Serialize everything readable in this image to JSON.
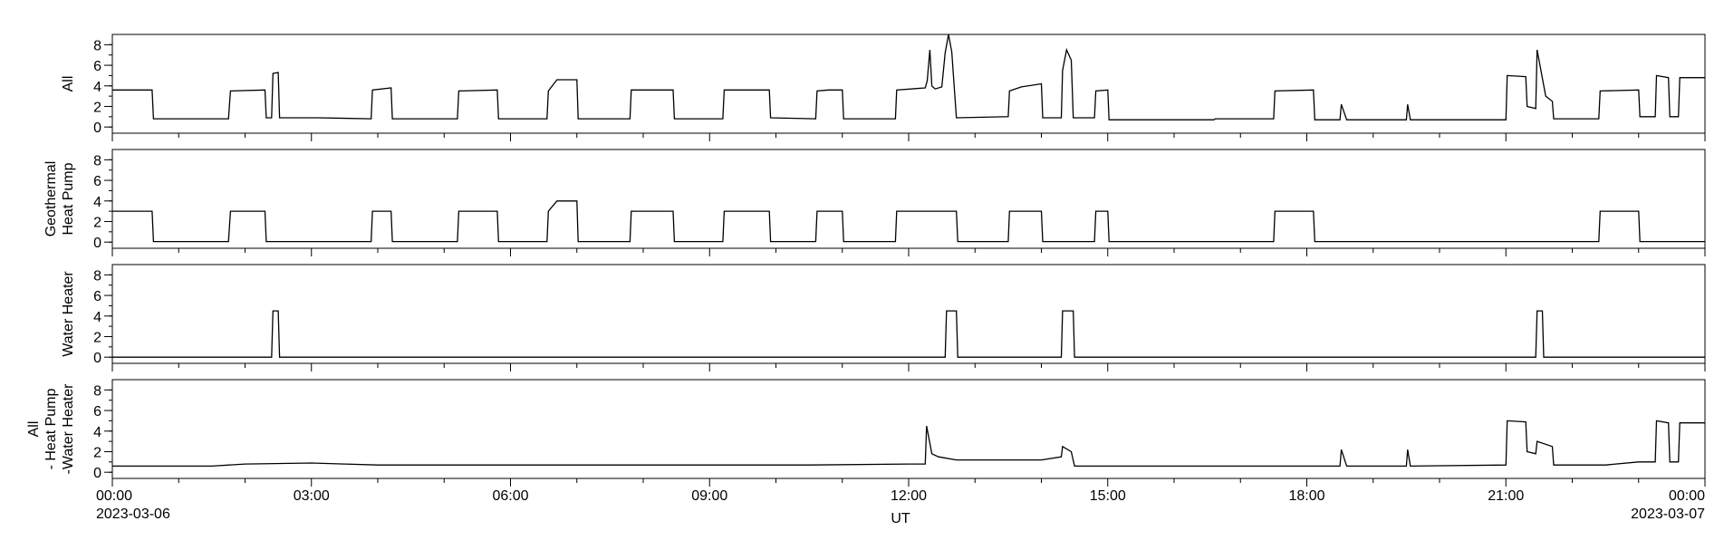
{
  "chart_data": {
    "type": "line",
    "xlabel": "UT",
    "x_tick_labels": [
      "00:00",
      "03:00",
      "06:00",
      "09:00",
      "12:00",
      "15:00",
      "18:00",
      "21:00",
      "00:00"
    ],
    "x_tick_hours": [
      0,
      3,
      6,
      9,
      12,
      15,
      18,
      21,
      24
    ],
    "x_date_labels": {
      "start": "2023-03-06",
      "end": "2023-03-07"
    },
    "x_range_hours": [
      0,
      24
    ],
    "y_tick_labels": [
      "0",
      "2",
      "4",
      "6",
      "8"
    ],
    "ylim": [
      -0.6,
      9
    ],
    "line_color": "#000000",
    "panels": [
      {
        "label_lines": [
          "All"
        ],
        "series": [
          [
            0,
            3.6
          ],
          [
            0.6,
            3.6
          ],
          [
            0.62,
            0.8
          ],
          [
            1.75,
            0.8
          ],
          [
            1.78,
            3.5
          ],
          [
            2.3,
            3.6
          ],
          [
            2.32,
            0.9
          ],
          [
            2.4,
            0.9
          ],
          [
            2.42,
            5.2
          ],
          [
            2.5,
            5.3
          ],
          [
            2.52,
            0.9
          ],
          [
            3.1,
            0.9
          ],
          [
            3.9,
            0.8
          ],
          [
            3.92,
            3.6
          ],
          [
            4.2,
            3.8
          ],
          [
            4.22,
            0.8
          ],
          [
            5.2,
            0.8
          ],
          [
            5.22,
            3.5
          ],
          [
            5.8,
            3.6
          ],
          [
            5.82,
            0.8
          ],
          [
            6.55,
            0.8
          ],
          [
            6.57,
            3.5
          ],
          [
            6.7,
            4.6
          ],
          [
            7.0,
            4.6
          ],
          [
            7.02,
            0.8
          ],
          [
            7.8,
            0.8
          ],
          [
            7.82,
            3.6
          ],
          [
            8.45,
            3.6
          ],
          [
            8.47,
            0.8
          ],
          [
            9.2,
            0.8
          ],
          [
            9.22,
            3.6
          ],
          [
            9.9,
            3.6
          ],
          [
            9.92,
            0.9
          ],
          [
            10.6,
            0.8
          ],
          [
            10.62,
            3.5
          ],
          [
            10.8,
            3.6
          ],
          [
            11.0,
            3.6
          ],
          [
            11.02,
            0.8
          ],
          [
            11.8,
            0.8
          ],
          [
            11.82,
            3.6
          ],
          [
            12.25,
            3.8
          ],
          [
            12.28,
            4.5
          ],
          [
            12.32,
            7.5
          ],
          [
            12.35,
            4.0
          ],
          [
            12.4,
            3.7
          ],
          [
            12.5,
            3.9
          ],
          [
            12.55,
            7.2
          ],
          [
            12.6,
            9.0
          ],
          [
            12.65,
            7.3
          ],
          [
            12.72,
            0.9
          ],
          [
            13.5,
            1.0
          ],
          [
            13.52,
            3.5
          ],
          [
            13.7,
            3.9
          ],
          [
            14.0,
            4.2
          ],
          [
            14.02,
            0.9
          ],
          [
            14.3,
            0.9
          ],
          [
            14.32,
            5.5
          ],
          [
            14.38,
            7.5
          ],
          [
            14.45,
            6.5
          ],
          [
            14.48,
            0.9
          ],
          [
            14.8,
            0.9
          ],
          [
            14.82,
            3.5
          ],
          [
            15.0,
            3.6
          ],
          [
            15.02,
            0.7
          ],
          [
            16.6,
            0.7
          ],
          [
            16.62,
            0.8
          ],
          [
            17.5,
            0.8
          ],
          [
            17.52,
            3.5
          ],
          [
            18.1,
            3.6
          ],
          [
            18.12,
            0.7
          ],
          [
            18.5,
            0.7
          ],
          [
            18.52,
            2.2
          ],
          [
            18.6,
            0.7
          ],
          [
            19.5,
            0.7
          ],
          [
            19.52,
            2.2
          ],
          [
            19.56,
            0.7
          ],
          [
            21.0,
            0.7
          ],
          [
            21.02,
            5.0
          ],
          [
            21.3,
            4.9
          ],
          [
            21.32,
            2.0
          ],
          [
            21.45,
            1.8
          ],
          [
            21.47,
            7.5
          ],
          [
            21.6,
            3.0
          ],
          [
            21.7,
            2.5
          ],
          [
            21.72,
            0.8
          ],
          [
            22.4,
            0.8
          ],
          [
            22.42,
            3.5
          ],
          [
            23.0,
            3.6
          ],
          [
            23.02,
            1.0
          ],
          [
            23.25,
            1.0
          ],
          [
            23.27,
            5.0
          ],
          [
            23.45,
            4.8
          ],
          [
            23.47,
            1.0
          ],
          [
            23.6,
            1.0
          ],
          [
            23.62,
            4.8
          ],
          [
            24.0,
            4.8
          ]
        ]
      },
      {
        "label_lines": [
          "Geothermal",
          "Heat Pump"
        ],
        "series": [
          [
            0,
            3.0
          ],
          [
            0.6,
            3.0
          ],
          [
            0.62,
            0.05
          ],
          [
            1.75,
            0.05
          ],
          [
            1.78,
            3.0
          ],
          [
            2.3,
            3.0
          ],
          [
            2.32,
            0.05
          ],
          [
            3.9,
            0.05
          ],
          [
            3.92,
            3.0
          ],
          [
            4.2,
            3.0
          ],
          [
            4.22,
            0.05
          ],
          [
            5.2,
            0.05
          ],
          [
            5.22,
            3.0
          ],
          [
            5.8,
            3.0
          ],
          [
            5.82,
            0.05
          ],
          [
            6.55,
            0.05
          ],
          [
            6.57,
            3.0
          ],
          [
            6.7,
            4.0
          ],
          [
            7.0,
            4.0
          ],
          [
            7.02,
            0.05
          ],
          [
            7.8,
            0.05
          ],
          [
            7.82,
            3.0
          ],
          [
            8.45,
            3.0
          ],
          [
            8.47,
            0.05
          ],
          [
            9.2,
            0.05
          ],
          [
            9.22,
            3.0
          ],
          [
            9.9,
            3.0
          ],
          [
            9.92,
            0.05
          ],
          [
            10.6,
            0.05
          ],
          [
            10.62,
            3.0
          ],
          [
            10.8,
            3.0
          ],
          [
            11.0,
            3.0
          ],
          [
            11.02,
            0.05
          ],
          [
            11.8,
            0.05
          ],
          [
            11.82,
            3.0
          ],
          [
            12.72,
            3.0
          ],
          [
            12.74,
            0.05
          ],
          [
            13.5,
            0.05
          ],
          [
            13.52,
            3.0
          ],
          [
            14.0,
            3.0
          ],
          [
            14.02,
            0.05
          ],
          [
            14.8,
            0.05
          ],
          [
            14.82,
            3.0
          ],
          [
            15.0,
            3.0
          ],
          [
            15.02,
            0.05
          ],
          [
            17.5,
            0.05
          ],
          [
            17.52,
            3.0
          ],
          [
            18.1,
            3.0
          ],
          [
            18.12,
            0.05
          ],
          [
            22.4,
            0.05
          ],
          [
            22.42,
            3.0
          ],
          [
            23.0,
            3.0
          ],
          [
            23.02,
            0.05
          ],
          [
            24.0,
            0.05
          ]
        ]
      },
      {
        "label_lines": [
          "Water Heater"
        ],
        "series": [
          [
            0,
            0
          ],
          [
            2.4,
            0
          ],
          [
            2.42,
            4.5
          ],
          [
            2.5,
            4.5
          ],
          [
            2.52,
            0
          ],
          [
            12.55,
            0
          ],
          [
            12.57,
            4.5
          ],
          [
            12.72,
            4.5
          ],
          [
            12.74,
            0
          ],
          [
            14.3,
            0
          ],
          [
            14.32,
            4.5
          ],
          [
            14.48,
            4.5
          ],
          [
            14.5,
            0
          ],
          [
            21.45,
            0
          ],
          [
            21.47,
            4.5
          ],
          [
            21.55,
            4.5
          ],
          [
            21.57,
            0
          ],
          [
            24.0,
            0
          ]
        ]
      },
      {
        "label_lines": [
          "All",
          "- Heat Pump",
          "-Water Heater"
        ],
        "series": [
          [
            0,
            0.6
          ],
          [
            1.5,
            0.6
          ],
          [
            2.0,
            0.8
          ],
          [
            3.0,
            0.9
          ],
          [
            3.5,
            0.8
          ],
          [
            4.0,
            0.7
          ],
          [
            6.0,
            0.7
          ],
          [
            9.0,
            0.7
          ],
          [
            10.5,
            0.7
          ],
          [
            12.0,
            0.8
          ],
          [
            12.25,
            0.8
          ],
          [
            12.27,
            4.5
          ],
          [
            12.35,
            1.8
          ],
          [
            12.45,
            1.5
          ],
          [
            12.72,
            1.2
          ],
          [
            13.5,
            1.2
          ],
          [
            14.0,
            1.2
          ],
          [
            14.3,
            1.5
          ],
          [
            14.32,
            2.5
          ],
          [
            14.45,
            2.0
          ],
          [
            14.5,
            0.6
          ],
          [
            16.0,
            0.6
          ],
          [
            18.0,
            0.6
          ],
          [
            18.5,
            0.6
          ],
          [
            18.52,
            2.2
          ],
          [
            18.6,
            0.6
          ],
          [
            19.5,
            0.6
          ],
          [
            19.52,
            2.2
          ],
          [
            19.56,
            0.6
          ],
          [
            21.0,
            0.7
          ],
          [
            21.02,
            5.0
          ],
          [
            21.3,
            4.9
          ],
          [
            21.32,
            2.0
          ],
          [
            21.45,
            1.8
          ],
          [
            21.47,
            3.0
          ],
          [
            21.7,
            2.5
          ],
          [
            21.72,
            0.7
          ],
          [
            22.5,
            0.7
          ],
          [
            23.0,
            1.0
          ],
          [
            23.25,
            1.0
          ],
          [
            23.27,
            5.0
          ],
          [
            23.45,
            4.8
          ],
          [
            23.47,
            1.0
          ],
          [
            23.6,
            1.0
          ],
          [
            23.62,
            4.8
          ],
          [
            24.0,
            4.8
          ]
        ]
      }
    ]
  }
}
